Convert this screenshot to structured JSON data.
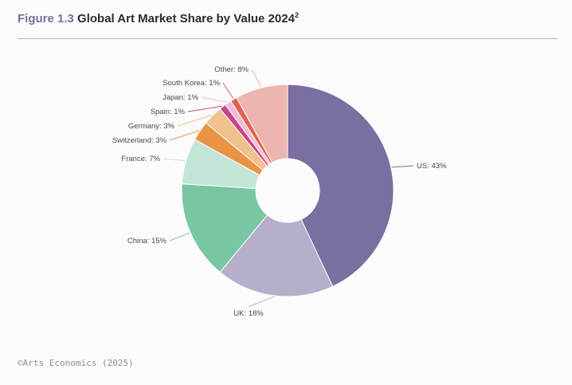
{
  "header": {
    "figure_number": "Figure 1.3",
    "title": "Global Art Market Share by Value 2024",
    "superscript": "2"
  },
  "chart_data": {
    "type": "pie",
    "title": "Global Art Market Share by Value 2024",
    "donut": true,
    "slices": [
      {
        "label": "US",
        "value": 43,
        "display": "US: 43%",
        "color": "#7b6ea0"
      },
      {
        "label": "UK",
        "value": 18,
        "display": "UK: 18%",
        "color": "#b6aecb"
      },
      {
        "label": "China",
        "value": 15,
        "display": "China: 15%",
        "color": "#79c6a3"
      },
      {
        "label": "France",
        "value": 7,
        "display": "France: 7%",
        "color": "#c3e5d8"
      },
      {
        "label": "Switzerland",
        "value": 3,
        "display": "Switzerland: 3%",
        "color": "#e89444"
      },
      {
        "label": "Germany",
        "value": 3,
        "display": "Germany: 3%",
        "color": "#f0c18f"
      },
      {
        "label": "Spain",
        "value": 1,
        "display": "Spain: 1%",
        "color": "#c94589"
      },
      {
        "label": "Japan",
        "value": 1,
        "display": "Japan: 1%",
        "color": "#f0bcd6"
      },
      {
        "label": "South Korea",
        "value": 1,
        "display": "South Korea: 1%",
        "color": "#e0624e"
      },
      {
        "label": "Other",
        "value": 8,
        "display": "Other: 8%",
        "color": "#edb5b0"
      }
    ]
  },
  "credit": "©Arts Economics (2025)"
}
